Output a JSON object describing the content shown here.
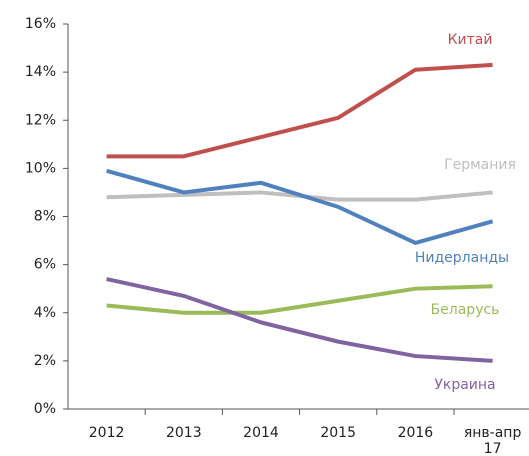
{
  "chart_data": {
    "type": "line",
    "categories": [
      "2012",
      "2013",
      "2014",
      "2015",
      "2016",
      "янв-апр 17"
    ],
    "series": [
      {
        "name": "Китай",
        "color": "#c0504d",
        "values": [
          10.5,
          10.5,
          11.3,
          12.1,
          14.1,
          14.3
        ]
      },
      {
        "name": "Германия",
        "color": "#bfbfbf",
        "values": [
          8.8,
          8.9,
          9.0,
          8.7,
          8.7,
          9.0
        ]
      },
      {
        "name": "Нидерланды",
        "color": "#4f81bd",
        "values": [
          9.9,
          9.0,
          9.4,
          8.4,
          6.9,
          7.8
        ]
      },
      {
        "name": "Беларусь",
        "color": "#9bbb59",
        "values": [
          4.3,
          4.0,
          4.0,
          4.5,
          5.0,
          5.1
        ]
      },
      {
        "name": "Украина",
        "color": "#8064a2",
        "values": [
          5.4,
          4.7,
          3.6,
          2.8,
          2.2,
          2.0
        ]
      }
    ],
    "ylim": [
      0,
      16
    ],
    "yticks": [
      {
        "value": 0,
        "label": "0%"
      },
      {
        "value": 2,
        "label": "2%"
      },
      {
        "value": 4,
        "label": "4%"
      },
      {
        "value": 6,
        "label": "6%"
      },
      {
        "value": 8,
        "label": "8%"
      },
      {
        "value": 10,
        "label": "10%"
      },
      {
        "value": 12,
        "label": "12%"
      },
      {
        "value": 14,
        "label": "14%"
      },
      {
        "value": 16,
        "label": "16%"
      }
    ],
    "grid": false
  }
}
